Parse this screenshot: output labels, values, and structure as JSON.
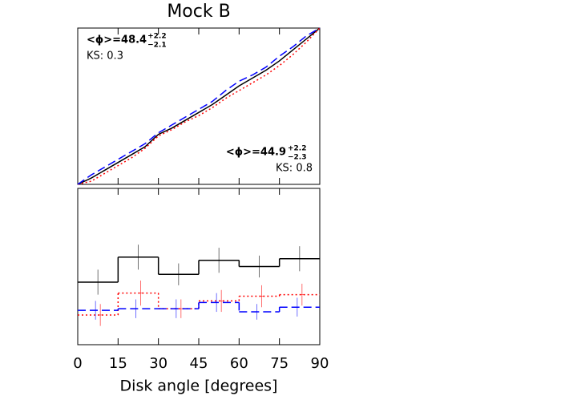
{
  "chart_data": [
    {
      "type": "line",
      "title": "Mock B",
      "x": [
        0,
        5,
        10,
        15,
        20,
        25,
        30,
        35,
        40,
        45,
        50,
        55,
        60,
        65,
        70,
        75,
        80,
        85,
        90
      ],
      "series": [
        {
          "color": "#000000",
          "linestyle": "solid",
          "values": [
            0,
            0.04,
            0.09,
            0.14,
            0.19,
            0.24,
            0.32,
            0.36,
            0.41,
            0.46,
            0.51,
            0.57,
            0.63,
            0.68,
            0.73,
            0.79,
            0.86,
            0.93,
            1.0
          ]
        },
        {
          "color": "#ff0000",
          "linestyle": "dotted",
          "values": [
            0,
            0.02,
            0.07,
            0.12,
            0.17,
            0.23,
            0.31,
            0.35,
            0.4,
            0.44,
            0.49,
            0.55,
            0.6,
            0.65,
            0.7,
            0.76,
            0.83,
            0.91,
            1.0
          ]
        },
        {
          "color": "#0000ff",
          "linestyle": "dashed",
          "values": [
            0,
            0.06,
            0.11,
            0.16,
            0.21,
            0.26,
            0.33,
            0.38,
            0.43,
            0.48,
            0.53,
            0.6,
            0.66,
            0.7,
            0.75,
            0.82,
            0.88,
            0.95,
            1.0
          ]
        }
      ],
      "xlim": [
        0,
        90
      ],
      "ylim": [
        0,
        1
      ],
      "xticks": [
        0,
        15,
        30,
        45,
        60,
        75,
        90
      ],
      "annotations": [
        {
          "text": "<ϕ>=48.4",
          "sup": "+2.2",
          "sub": "−2.1",
          "ks": "KS: 0.3"
        },
        {
          "text": "<ϕ>=44.9",
          "sup": "+2.2",
          "sub": "−2.3",
          "ks": "KS: 0.8"
        }
      ]
    },
    {
      "type": "histogram",
      "xlabel": "Disk angle [degrees]",
      "bins": [
        0,
        15,
        30,
        45,
        60,
        75,
        90
      ],
      "series": [
        {
          "color": "#000000",
          "linestyle": "solid",
          "values": [
            0.4,
            0.56,
            0.45,
            0.54,
            0.5,
            0.55
          ],
          "errors": [
            0.08,
            0.08,
            0.07,
            0.08,
            0.07,
            0.08
          ]
        },
        {
          "color": "#ff0000",
          "linestyle": "dotted",
          "values": [
            0.19,
            0.33,
            0.23,
            0.28,
            0.31,
            0.32
          ],
          "errors": [
            0.07,
            0.08,
            0.06,
            0.07,
            0.07,
            0.07
          ]
        },
        {
          "color": "#0000ff",
          "linestyle": "dashed",
          "values": [
            0.22,
            0.23,
            0.23,
            0.27,
            0.21,
            0.24
          ],
          "errors": [
            0.06,
            0.06,
            0.06,
            0.06,
            0.05,
            0.06
          ]
        }
      ],
      "xlim": [
        0,
        90
      ],
      "ylim": [
        0,
        1
      ],
      "xticks": [
        0,
        15,
        30,
        45,
        60,
        75,
        90
      ]
    }
  ]
}
